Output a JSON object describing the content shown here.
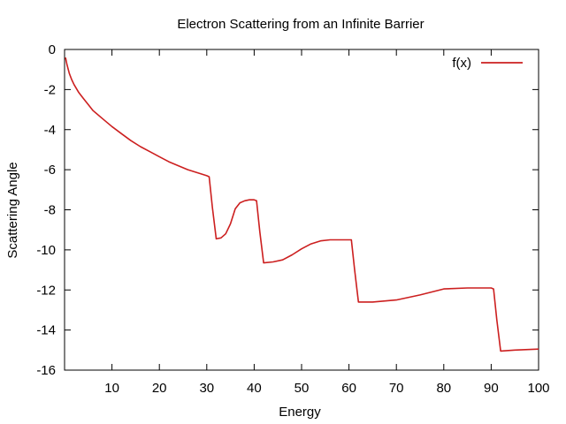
{
  "chart_data": {
    "type": "line",
    "title": "Electron Scattering from an Infinite Barrier",
    "xlabel": "Energy",
    "ylabel": "Scattering Angle",
    "xlim": [
      0,
      100
    ],
    "ylim": [
      -16,
      0
    ],
    "x_ticks": [
      10,
      20,
      30,
      40,
      50,
      60,
      70,
      80,
      90,
      100
    ],
    "y_ticks": [
      0,
      -2,
      -4,
      -6,
      -8,
      -10,
      -12,
      -14,
      -16
    ],
    "x_tick_labels": [
      "10",
      "20",
      "30",
      "40",
      "50",
      "60",
      "70",
      "80",
      "90",
      "100"
    ],
    "y_tick_labels": [
      "0",
      "-2",
      "-4",
      "-6",
      "-8",
      "-10",
      "-12",
      "-14",
      "-16"
    ],
    "grid": false,
    "legend_position": "top-right",
    "series": [
      {
        "name": "f(x)",
        "color": "#cc1f1f",
        "x": [
          0.2,
          0.5,
          1,
          1.5,
          2,
          3,
          4,
          5,
          6,
          8,
          10,
          12,
          14,
          16,
          18,
          20,
          22,
          24,
          26,
          28,
          30,
          30.5,
          31.2,
          32,
          33,
          34,
          35,
          36,
          37,
          38,
          39,
          40,
          40.5,
          41.2,
          42,
          44,
          46,
          48,
          50,
          52,
          54,
          56,
          58,
          60,
          60.5,
          61.2,
          62,
          65,
          70,
          75,
          80,
          85,
          90,
          90.5,
          91.2,
          92,
          95,
          100
        ],
        "y": [
          -0.4,
          -0.75,
          -1.2,
          -1.5,
          -1.75,
          -2.15,
          -2.45,
          -2.75,
          -3.05,
          -3.45,
          -3.85,
          -4.2,
          -4.55,
          -4.85,
          -5.1,
          -5.35,
          -5.6,
          -5.8,
          -6.0,
          -6.15,
          -6.3,
          -6.35,
          -7.9,
          -9.45,
          -9.4,
          -9.2,
          -8.7,
          -7.95,
          -7.65,
          -7.55,
          -7.5,
          -7.5,
          -7.55,
          -9.1,
          -10.65,
          -10.6,
          -10.5,
          -10.25,
          -9.95,
          -9.7,
          -9.55,
          -9.5,
          -9.5,
          -9.5,
          -9.5,
          -11.0,
          -12.6,
          -12.6,
          -12.5,
          -12.25,
          -11.95,
          -11.9,
          -11.9,
          -11.95,
          -13.5,
          -15.05,
          -15.0,
          -14.95
        ]
      }
    ]
  }
}
